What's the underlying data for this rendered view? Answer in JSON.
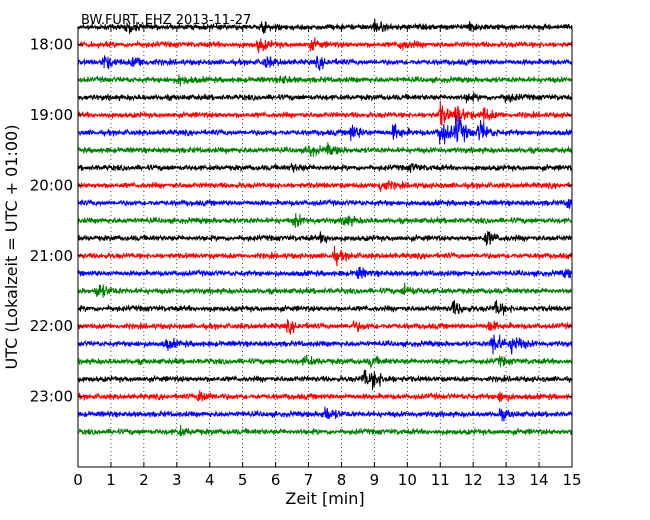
{
  "chart_data": {
    "type": "line",
    "title": "BW.FURT..EHZ 2013-11-27",
    "xlabel": "Zeit  [min]",
    "ylabel": "UTC (Lokalzeit = UTC + 01:00)",
    "xlim": [
      0,
      15
    ],
    "x_ticks": [
      "0",
      "1",
      "2",
      "3",
      "4",
      "5",
      "6",
      "7",
      "8",
      "9",
      "10",
      "11",
      "12",
      "13",
      "14",
      "15"
    ],
    "y_tick_labels": [
      "18:00",
      "19:00",
      "20:00",
      "21:00",
      "22:00",
      "23:00"
    ],
    "trace_minutes": 15,
    "trace_start": "17:45",
    "trace_end": "00:00",
    "trace_colors": [
      "#000000",
      "#ff0000",
      "#0000ff",
      "#008000"
    ],
    "grid": "vertical dotted lines at each minute",
    "series": [
      {
        "start": "17:45",
        "color": "#000000",
        "events": [
          {
            "t": 1.5,
            "a": 0.8
          },
          {
            "t": 5.6,
            "a": 0.6
          },
          {
            "t": 9.0,
            "a": 0.8
          },
          {
            "t": 11.9,
            "a": 0.6
          }
        ]
      },
      {
        "start": "18:00",
        "color": "#ff0000",
        "events": [
          {
            "t": 5.5,
            "a": 0.9
          },
          {
            "t": 7.1,
            "a": 0.6
          },
          {
            "t": 9.8,
            "a": 0.7
          }
        ]
      },
      {
        "start": "18:15",
        "color": "#0000ff",
        "events": [
          {
            "t": 0.8,
            "a": 1.0
          },
          {
            "t": 1.7,
            "a": 0.8
          },
          {
            "t": 5.7,
            "a": 0.8
          },
          {
            "t": 7.3,
            "a": 0.7
          }
        ]
      },
      {
        "start": "18:30",
        "color": "#008000",
        "events": [
          {
            "t": 3.1,
            "a": 0.7
          },
          {
            "t": 6.2,
            "a": 0.5
          }
        ]
      },
      {
        "start": "18:45",
        "color": "#000000",
        "events": [
          {
            "t": 11.8,
            "a": 0.5
          },
          {
            "t": 13.0,
            "a": 0.6
          }
        ]
      },
      {
        "start": "19:00",
        "color": "#ff0000",
        "events": [
          {
            "t": 11.0,
            "a": 1.5
          },
          {
            "t": 11.5,
            "a": 1.3
          },
          {
            "t": 12.3,
            "a": 1.0
          }
        ]
      },
      {
        "start": "19:15",
        "color": "#0000ff",
        "events": [
          {
            "t": 8.3,
            "a": 1.2
          },
          {
            "t": 9.6,
            "a": 1.1
          },
          {
            "t": 11.0,
            "a": 2.2
          },
          {
            "t": 11.5,
            "a": 2.0
          },
          {
            "t": 12.2,
            "a": 1.5
          }
        ]
      },
      {
        "start": "19:30",
        "color": "#008000",
        "events": [
          {
            "t": 7.0,
            "a": 0.8
          },
          {
            "t": 7.6,
            "a": 0.6
          }
        ]
      },
      {
        "start": "19:45",
        "color": "#000000",
        "events": [
          {
            "t": 6.5,
            "a": 0.5
          },
          {
            "t": 10.1,
            "a": 0.5
          }
        ]
      },
      {
        "start": "20:00",
        "color": "#ff0000",
        "events": [
          {
            "t": 9.2,
            "a": 0.9
          }
        ]
      },
      {
        "start": "20:15",
        "color": "#0000ff",
        "events": [
          {
            "t": 14.9,
            "a": 1.0
          }
        ]
      },
      {
        "start": "20:30",
        "color": "#008000",
        "events": [
          {
            "t": 6.6,
            "a": 0.8
          },
          {
            "t": 8.1,
            "a": 0.8
          }
        ]
      },
      {
        "start": "20:45",
        "color": "#000000",
        "events": [
          {
            "t": 7.4,
            "a": 0.6
          },
          {
            "t": 12.4,
            "a": 1.0
          }
        ]
      },
      {
        "start": "21:00",
        "color": "#ff0000",
        "events": [
          {
            "t": 7.8,
            "a": 0.9
          }
        ]
      },
      {
        "start": "21:15",
        "color": "#0000ff",
        "events": [
          {
            "t": 8.5,
            "a": 0.8
          },
          {
            "t": 14.8,
            "a": 0.5
          }
        ]
      },
      {
        "start": "21:30",
        "color": "#008000",
        "events": [
          {
            "t": 0.6,
            "a": 1.1
          },
          {
            "t": 9.9,
            "a": 0.8
          }
        ]
      },
      {
        "start": "21:45",
        "color": "#000000",
        "events": [
          {
            "t": 11.4,
            "a": 0.9
          },
          {
            "t": 12.7,
            "a": 1.0
          }
        ]
      },
      {
        "start": "22:00",
        "color": "#ff0000",
        "events": [
          {
            "t": 6.4,
            "a": 0.7
          },
          {
            "t": 8.4,
            "a": 0.6
          },
          {
            "t": 12.5,
            "a": 0.7
          }
        ]
      },
      {
        "start": "22:15",
        "color": "#0000ff",
        "events": [
          {
            "t": 2.7,
            "a": 0.7
          },
          {
            "t": 12.6,
            "a": 1.8
          },
          {
            "t": 13.2,
            "a": 1.2
          }
        ]
      },
      {
        "start": "22:30",
        "color": "#008000",
        "events": [
          {
            "t": 6.9,
            "a": 0.6
          },
          {
            "t": 8.9,
            "a": 0.6
          },
          {
            "t": 12.8,
            "a": 0.5
          }
        ]
      },
      {
        "start": "22:45",
        "color": "#000000",
        "events": [
          {
            "t": 8.7,
            "a": 1.2
          },
          {
            "t": 9.0,
            "a": 0.9
          }
        ]
      },
      {
        "start": "23:00",
        "color": "#ff0000",
        "events": [
          {
            "t": 3.7,
            "a": 0.9
          },
          {
            "t": 12.8,
            "a": 0.6
          }
        ]
      },
      {
        "start": "23:15",
        "color": "#0000ff",
        "events": [
          {
            "t": 7.5,
            "a": 1.1
          },
          {
            "t": 12.8,
            "a": 0.7
          }
        ]
      },
      {
        "start": "23:30",
        "color": "#008000",
        "events": [
          {
            "t": 3.1,
            "a": 0.5
          }
        ]
      }
    ]
  }
}
